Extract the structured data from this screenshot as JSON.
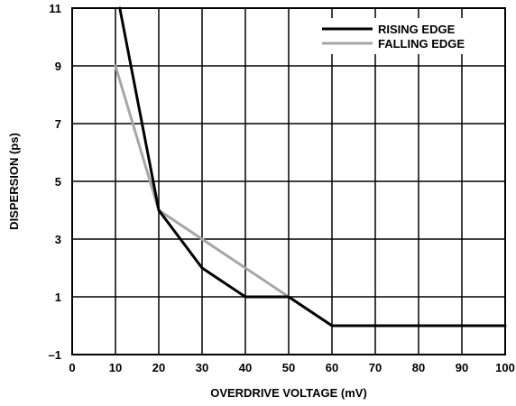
{
  "chart_data": {
    "type": "line",
    "xlabel": "OVERDRIVE VOLTAGE (mV)",
    "ylabel": "DISPERSION (ps)",
    "xlim": [
      0,
      100
    ],
    "ylim": [
      -1,
      11
    ],
    "x_ticks": [
      0,
      10,
      20,
      30,
      40,
      50,
      60,
      70,
      80,
      90,
      100
    ],
    "y_ticks": [
      -1,
      1,
      3,
      5,
      7,
      9,
      11
    ],
    "x_tick_labels": [
      "0",
      "10",
      "20",
      "30",
      "40",
      "50",
      "60",
      "70",
      "80",
      "90",
      "100"
    ],
    "y_tick_labels": [
      "–1",
      "1",
      "3",
      "5",
      "7",
      "9",
      "11"
    ],
    "grid": true,
    "legend_position": "top-right",
    "series": [
      {
        "name": "RISING EDGE",
        "color": "#000000",
        "points": [
          [
            11,
            11
          ],
          [
            20,
            4
          ],
          [
            30,
            2
          ],
          [
            40,
            1
          ],
          [
            50,
            1
          ],
          [
            60,
            0
          ],
          [
            100,
            0
          ]
        ]
      },
      {
        "name": "FALLING EDGE",
        "color": "#a6a6a6",
        "points": [
          [
            10,
            9
          ],
          [
            20,
            4
          ],
          [
            60,
            0
          ],
          [
            100,
            0
          ]
        ]
      }
    ]
  }
}
